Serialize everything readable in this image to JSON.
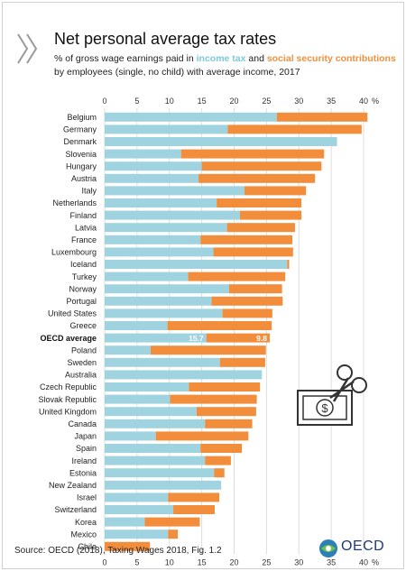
{
  "header": {
    "title": "Net personal average tax rates",
    "subtitle_prefix": "% of gross wage earnings paid in",
    "subtitle_income": "income tax",
    "subtitle_and": "and",
    "subtitle_social": "social security contributions",
    "subtitle_rest": "by employees (single, no child) with average income, 2017"
  },
  "footer": {
    "source": "Source: OECD (2018), Taxing Wages 2018, Fig. 1.2",
    "logo_text": "OECD"
  },
  "colors": {
    "income_tax": "#9fd3e0",
    "social_security": "#f28e3b",
    "grid": "#dddddd",
    "highlight_label": "#111111"
  },
  "chart_data": {
    "type": "bar",
    "orientation": "horizontal",
    "stacked": true,
    "xlim": [
      0,
      40
    ],
    "xticks": [
      0,
      5,
      10,
      15,
      20,
      25,
      30,
      35,
      40
    ],
    "xtick_unit": "%",
    "highlight_category": "OECD average",
    "annotations": {
      "OECD average": [
        "15.7",
        "9.8"
      ]
    },
    "categories": [
      "Belgium",
      "Germany",
      "Denmark",
      "Slovenia",
      "Hungary",
      "Austria",
      "Italy",
      "Netherlands",
      "Finland",
      "Latvia",
      "France",
      "Luxembourg",
      "Iceland",
      "Turkey",
      "Norway",
      "Portugal",
      "United States",
      "Greece",
      "OECD average",
      "Poland",
      "Sweden",
      "Australia",
      "Czech Republic",
      "Slovak Republic",
      "United Kingdom",
      "Canada",
      "Japan",
      "Spain",
      "Ireland",
      "Estonia",
      "New Zealand",
      "Israel",
      "Switzerland",
      "Korea",
      "Mexico",
      "Chile"
    ],
    "series": [
      {
        "name": "income tax",
        "values": [
          26.6,
          19.0,
          35.9,
          11.8,
          15.0,
          14.5,
          21.6,
          17.3,
          20.9,
          18.9,
          14.8,
          16.8,
          28.2,
          12.9,
          19.2,
          16.5,
          18.2,
          9.7,
          15.7,
          7.1,
          17.8,
          24.3,
          13.0,
          10.1,
          14.2,
          15.5,
          7.9,
          14.8,
          15.5,
          16.9,
          18.0,
          9.8,
          10.6,
          6.2,
          9.8,
          0.0
        ]
      },
      {
        "name": "social security contributions",
        "values": [
          14.0,
          20.7,
          0.0,
          22.1,
          18.5,
          18.0,
          9.5,
          13.1,
          9.5,
          10.5,
          14.2,
          12.3,
          0.3,
          15.0,
          8.2,
          11.0,
          7.7,
          16.1,
          9.8,
          17.8,
          7.0,
          0.0,
          11.0,
          13.4,
          9.2,
          7.3,
          14.3,
          6.4,
          4.0,
          1.6,
          0.0,
          7.9,
          6.4,
          8.5,
          1.5,
          7.0
        ]
      }
    ]
  }
}
